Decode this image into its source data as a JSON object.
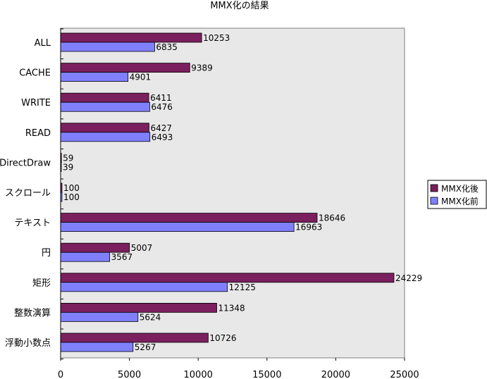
{
  "chart_data": {
    "type": "bar",
    "orientation": "horizontal",
    "title": "MMX化の結果",
    "xlabel": "",
    "ylabel": "",
    "categories": [
      "ALL",
      "CACHE",
      "WRITE",
      "READ",
      "DirectDraw",
      "スクロール",
      "テキスト",
      "円",
      "矩形",
      "整数演算",
      "浮動小数点"
    ],
    "series": [
      {
        "name": "MMX化後",
        "color": "#7b1f5e",
        "values": [
          10253,
          9389,
          6411,
          6427,
          59,
          100,
          18646,
          5007,
          24229,
          11348,
          10726
        ]
      },
      {
        "name": "MMX化前",
        "color": "#8080ff",
        "values": [
          6835,
          4901,
          6476,
          6493,
          39,
          100,
          16963,
          3567,
          12125,
          5624,
          5267
        ]
      }
    ],
    "xlim": [
      0,
      25000
    ],
    "xticks": [
      "0",
      "5000",
      "10000",
      "15000",
      "20000",
      "25000"
    ],
    "grid": false,
    "plot_background": "#e8e8e8",
    "legend_position": "right"
  }
}
